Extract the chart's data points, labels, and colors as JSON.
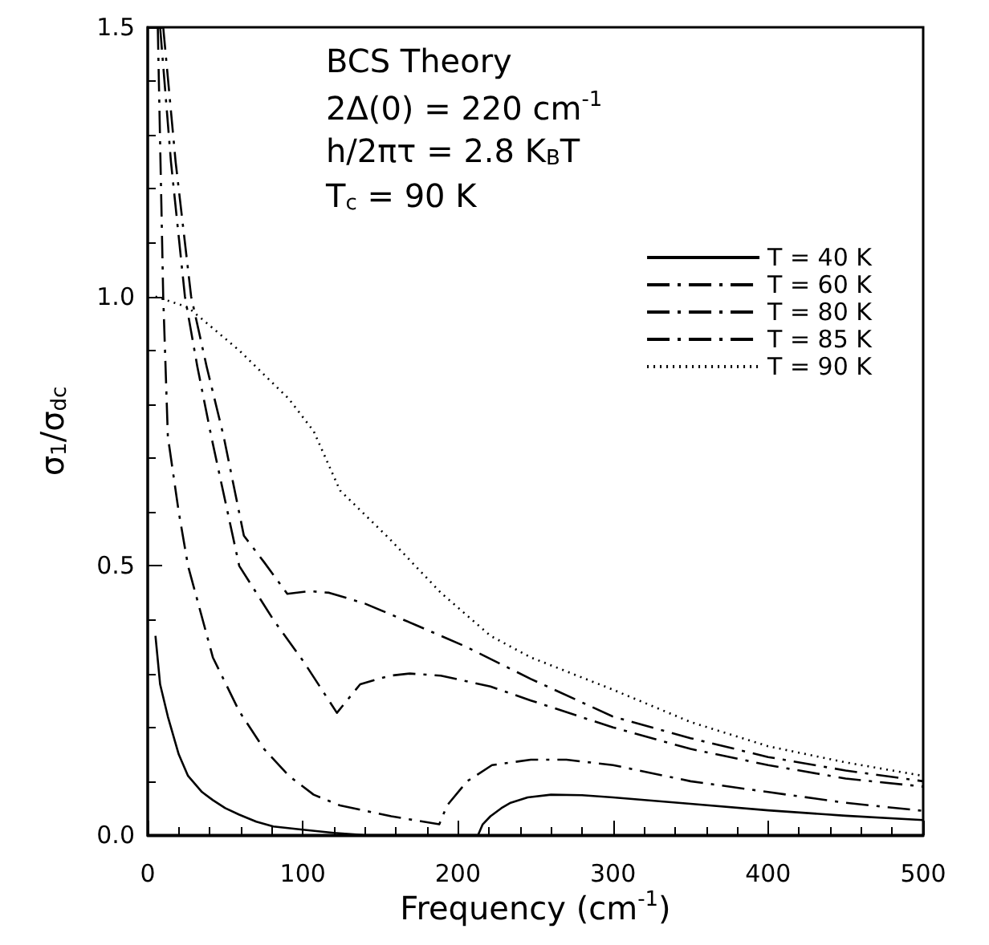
{
  "chart_data": {
    "type": "line",
    "xlabel": "Frequency (cm$^{-1}$)",
    "ylabel": "σ$_{1}$/σ$_{dc}$",
    "annotations": [
      "BCS Theory",
      "2Δ(0) = 220 cm$^{-1}$",
      "h/2πτ = 2.8 K$_{B}$T",
      "T$_{c}$ = 90 K"
    ],
    "xlim": [
      0,
      500
    ],
    "xticks": [
      0,
      100,
      200,
      300,
      400,
      500
    ],
    "ylim": [
      0,
      1.5
    ],
    "yticks": [
      {
        "value": 0,
        "label": "0.0"
      },
      {
        "value": 0.5,
        "label": "0.5"
      },
      {
        "value": 1,
        "label": "1.0"
      },
      {
        "value": 1.5,
        "label": "1.5"
      }
    ],
    "grid": false,
    "legend": "top right",
    "marker": "none",
    "series": [
      {
        "name": "T = 40 K",
        "color": "#000000",
        "line_style": "solid",
        "x": [
          5,
          8,
          13,
          20,
          26,
          35,
          42,
          50,
          59,
          70,
          81,
          100,
          120,
          140,
          200,
          213,
          216,
          221,
          228,
          234,
          245,
          260,
          280,
          300,
          350,
          400,
          450,
          500
        ],
        "values": [
          0.37,
          0.28,
          0.22,
          0.15,
          0.11,
          0.08,
          0.065,
          0.05,
          0.038,
          0.025,
          0.016,
          0.01,
          0.004,
          0,
          0,
          0,
          0.02,
          0.035,
          0.05,
          0.06,
          0.07,
          0.075,
          0.074,
          0.07,
          0.058,
          0.046,
          0.036,
          0.028
        ]
      },
      {
        "name": "T = 60 K",
        "color": "#000000",
        "line_style": "dashed",
        "x": [
          6.5,
          10,
          13,
          20,
          26,
          42,
          59,
          75,
          91,
          107,
          124,
          157,
          188,
          193,
          206,
          222,
          247,
          270,
          300,
          350,
          400,
          450,
          500
        ],
        "values": [
          1.5,
          1.0,
          0.74,
          0.6,
          0.5,
          0.33,
          0.23,
          0.16,
          0.11,
          0.075,
          0.055,
          0.035,
          0.02,
          0.055,
          0.1,
          0.13,
          0.14,
          0.14,
          0.13,
          0.1,
          0.08,
          0.06,
          0.045
        ]
      },
      {
        "name": "T = 80 K",
        "color": "#000000",
        "line_style": "dashed",
        "x": [
          8,
          15,
          24,
          32,
          41,
          50,
          59,
          81,
          101,
          122,
          137,
          156,
          169,
          189,
          221,
          247,
          300,
          350,
          400,
          450,
          500
        ],
        "values": [
          1.5,
          1.25,
          1.0,
          0.87,
          0.74,
          0.62,
          0.5,
          0.4,
          0.32,
          0.227,
          0.28,
          0.296,
          0.3,
          0.296,
          0.276,
          0.25,
          0.2,
          0.16,
          0.13,
          0.105,
          0.09
        ]
      },
      {
        "name": "T = 85 K",
        "color": "#000000",
        "line_style": "dashed",
        "x": [
          10,
          18,
          28,
          38,
          49,
          62,
          75,
          90,
          104,
          117,
          140,
          173,
          205,
          247,
          300,
          350,
          400,
          450,
          500
        ],
        "values": [
          1.5,
          1.25,
          1.0,
          0.87,
          0.74,
          0.556,
          0.507,
          0.448,
          0.453,
          0.45,
          0.43,
          0.39,
          0.35,
          0.29,
          0.22,
          0.18,
          0.145,
          0.12,
          0.1
        ]
      },
      {
        "name": "T = 90 K",
        "color": "#000000",
        "line_style": "dotted",
        "x": [
          5,
          26,
          59,
          91,
          107,
          124,
          156,
          189,
          221,
          247,
          300,
          350,
          400,
          450,
          500
        ],
        "values": [
          1.0,
          0.98,
          0.9,
          0.81,
          0.75,
          0.64,
          0.55,
          0.45,
          0.37,
          0.33,
          0.27,
          0.21,
          0.165,
          0.135,
          0.11
        ]
      }
    ]
  }
}
